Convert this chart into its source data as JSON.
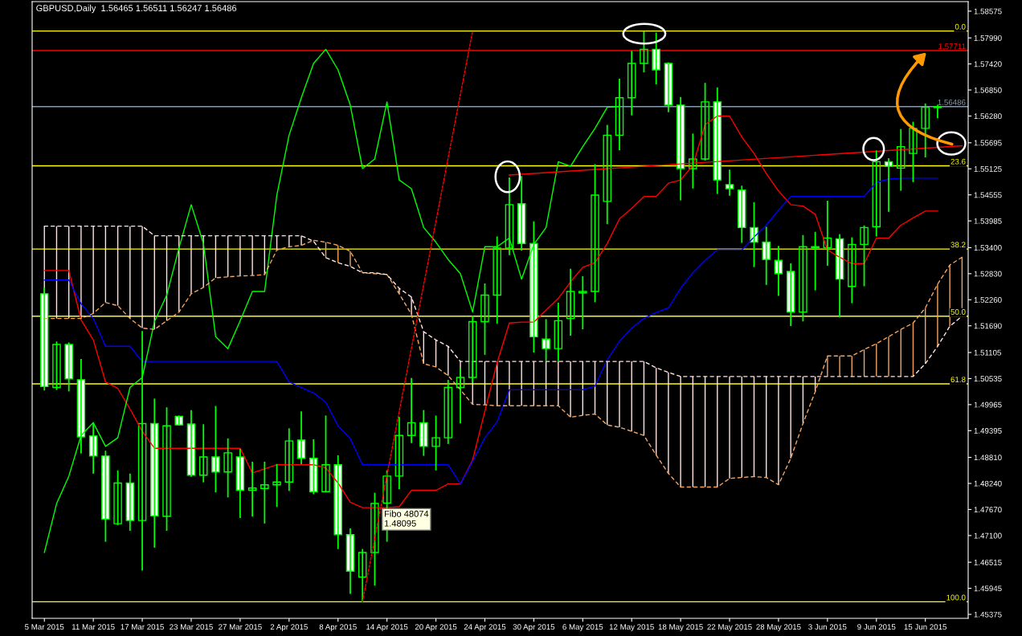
{
  "chart_data": {
    "type": "candlestick",
    "title": "GBPUSD,Daily  1.56465 1.56511 1.56247 1.56486",
    "categories": [
      "5 Mar 2015",
      null,
      null,
      null,
      "11 Mar 2015",
      null,
      null,
      null,
      "17 Mar 2015",
      null,
      null,
      null,
      "23 Mar 2015",
      null,
      null,
      null,
      "27 Mar 2015",
      null,
      null,
      null,
      "2 Apr 2015",
      null,
      null,
      null,
      "8 Apr 2015",
      null,
      null,
      null,
      "14 Apr 2015",
      null,
      null,
      null,
      "20 Apr 2015",
      null,
      null,
      null,
      "24 Apr 2015",
      null,
      null,
      null,
      "30 Apr 2015",
      null,
      null,
      null,
      "6 May 2015",
      null,
      null,
      null,
      "12 May 2015",
      null,
      null,
      null,
      "18 May 2015",
      null,
      null,
      null,
      "22 May 2015",
      null,
      null,
      null,
      "28 May 2015",
      null,
      null,
      null,
      "3 Jun 2015",
      null,
      null,
      null,
      "9 Jun 2015",
      null,
      null,
      null,
      "15 Jun 2015",
      null,
      null,
      null
    ],
    "color": "#00ff00",
    "ohlc": [
      [
        1.5239,
        1.5251,
        1.5029,
        1.5036
      ],
      [
        1.5034,
        1.5133,
        1.503,
        1.5128
      ],
      [
        1.5128,
        1.5131,
        1.5027,
        1.5053
      ],
      [
        1.5051,
        1.5095,
        1.4891,
        1.4926
      ],
      [
        1.4928,
        1.4955,
        1.4847,
        1.4884
      ],
      [
        1.4884,
        1.4894,
        1.4698,
        1.4746
      ],
      [
        1.4736,
        1.4851,
        1.4734,
        1.4825
      ],
      [
        1.4825,
        1.4844,
        1.4722,
        1.4743
      ],
      [
        1.4743,
        1.5156,
        1.4635,
        1.4955
      ],
      [
        1.4955,
        1.5008,
        1.4685,
        1.4753
      ],
      [
        1.4752,
        1.4989,
        1.4722,
        1.495
      ],
      [
        1.4971,
        1.4971,
        1.4952,
        1.4952
      ],
      [
        1.4954,
        1.4983,
        1.484,
        1.4842
      ],
      [
        1.4842,
        1.4952,
        1.4828,
        1.4882
      ],
      [
        1.4882,
        1.4992,
        1.4806,
        1.4849
      ],
      [
        1.4849,
        1.4921,
        1.4795,
        1.4891
      ],
      [
        1.4882,
        1.4898,
        1.475,
        1.4809
      ],
      [
        1.4809,
        1.487,
        1.4753,
        1.4814
      ],
      [
        1.4813,
        1.487,
        1.4738,
        1.4821
      ],
      [
        1.4821,
        1.4865,
        1.4774,
        1.4827
      ],
      [
        1.4827,
        1.4943,
        1.4809,
        1.4917
      ],
      [
        1.4919,
        1.498,
        1.4868,
        1.4879
      ],
      [
        1.4879,
        1.4919,
        1.4802,
        1.4806
      ],
      [
        1.4806,
        1.4971,
        1.4806,
        1.4865
      ],
      [
        1.4865,
        1.4884,
        1.4682,
        1.4712
      ],
      [
        1.4712,
        1.4724,
        1.4584,
        1.4632
      ],
      [
        1.4619,
        1.4679,
        1.4565,
        1.4673
      ],
      [
        1.4673,
        1.4802,
        1.4602,
        1.478
      ],
      [
        1.4781,
        1.4851,
        1.4698,
        1.484
      ],
      [
        1.484,
        1.4968,
        1.4813,
        1.4929
      ],
      [
        1.4929,
        1.5053,
        1.4914,
        1.4957
      ],
      [
        1.4957,
        1.4983,
        1.4886,
        1.4905
      ],
      [
        1.4905,
        1.4971,
        1.4854,
        1.4924
      ],
      [
        1.4924,
        1.5049,
        1.4912,
        1.5034
      ],
      [
        1.5034,
        1.5074,
        1.4957,
        1.5056
      ],
      [
        1.5056,
        1.519,
        1.5046,
        1.5178
      ],
      [
        1.5178,
        1.526,
        1.5107,
        1.5236
      ],
      [
        1.5236,
        1.5363,
        1.5175,
        1.5339
      ],
      [
        1.5339,
        1.5492,
        1.5325,
        1.5434
      ],
      [
        1.5436,
        1.5495,
        1.5335,
        1.5349
      ],
      [
        1.5349,
        1.5396,
        1.5112,
        1.5145
      ],
      [
        1.514,
        1.5182,
        1.5093,
        1.5119
      ],
      [
        1.5119,
        1.5218,
        1.5093,
        1.518
      ],
      [
        1.5185,
        1.5292,
        1.5149,
        1.5244
      ],
      [
        1.5241,
        1.5276,
        1.5163,
        1.5244
      ],
      [
        1.5244,
        1.5521,
        1.5222,
        1.5455
      ],
      [
        1.5441,
        1.5607,
        1.5393,
        1.5586
      ],
      [
        1.5586,
        1.5708,
        1.5555,
        1.5668
      ],
      [
        1.5668,
        1.5769,
        1.5631,
        1.5743
      ],
      [
        1.5743,
        1.5812,
        1.5725,
        1.5774
      ],
      [
        1.5774,
        1.5809,
        1.5699,
        1.5729
      ],
      [
        1.5743,
        1.5744,
        1.5638,
        1.5652
      ],
      [
        1.5652,
        1.5668,
        1.5445,
        1.5513
      ],
      [
        1.5513,
        1.5588,
        1.5471,
        1.5534
      ],
      [
        1.5534,
        1.5699,
        1.5532,
        1.5659
      ],
      [
        1.5659,
        1.5689,
        1.5459,
        1.5488
      ],
      [
        1.5478,
        1.5509,
        1.5455,
        1.5469
      ],
      [
        1.5466,
        1.5474,
        1.5352,
        1.5384
      ],
      [
        1.5384,
        1.5438,
        1.5299,
        1.5352
      ],
      [
        1.5352,
        1.5384,
        1.526,
        1.5314
      ],
      [
        1.5312,
        1.5342,
        1.5236,
        1.5283
      ],
      [
        1.5288,
        1.5304,
        1.517,
        1.5199
      ],
      [
        1.5199,
        1.5366,
        1.518,
        1.5342
      ],
      [
        1.534,
        1.5373,
        1.5248,
        1.5342
      ],
      [
        1.534,
        1.5441,
        1.5302,
        1.5361
      ],
      [
        1.5359,
        1.5368,
        1.5189,
        1.5271
      ],
      [
        1.5255,
        1.5361,
        1.522,
        1.5347
      ],
      [
        1.5347,
        1.5387,
        1.5257,
        1.5384
      ],
      [
        1.5386,
        1.5551,
        1.5366,
        1.5528
      ],
      [
        1.5528,
        1.5534,
        1.542,
        1.5518
      ],
      [
        1.5514,
        1.5598,
        1.5466,
        1.5561
      ],
      [
        1.5546,
        1.5614,
        1.5485,
        1.5601
      ],
      [
        1.5601,
        1.5654,
        1.5539,
        1.5647
      ],
      [
        1.56465,
        1.56511,
        1.56247,
        1.56486
      ],
      null,
      null
    ],
    "colors": [
      "#ffffff",
      "#00ff00",
      "#ffffff",
      "#ffffff",
      "#ffffff",
      "#ffffff",
      "#00ff00",
      "#ffffff",
      "#00ff00",
      "#ffffff",
      "#00ff00",
      "#ffffff",
      "#ffffff",
      "#00ff00",
      "#ffffff",
      "#00ff00",
      "#ffffff",
      "#00ff00",
      "#00ff00",
      "#00ff00",
      "#00ff00",
      "#ffffff",
      "#ffffff",
      "#00ff00",
      "#ffffff",
      "#ffffff",
      "#00ff00",
      "#00ff00",
      "#00ff00",
      "#00ff00",
      "#00ff00",
      "#ffffff",
      "#00ff00",
      "#00ff00",
      "#00ff00",
      "#00ff00",
      "#00ff00",
      "#00ff00",
      "#00ff00",
      "#ffffff",
      "#ffffff",
      "#ffffff",
      "#00ff00",
      "#00ff00",
      "#00ff00",
      "#00ff00",
      "#00ff00",
      "#00ff00",
      "#00ff00",
      "#00ff00",
      "#ffffff",
      "#ffffff",
      "#ffffff",
      "#00ff00",
      "#00ff00",
      "#ffffff",
      "#ffffff",
      "#ffffff",
      "#ffffff",
      "#ffffff",
      "#ffffff",
      "#ffffff",
      "#00ff00",
      "#00ff00",
      "#00ff00",
      "#ffffff",
      "#00ff00",
      "#00ff00",
      "#00ff00",
      "#ffffff",
      "#00ff00",
      "#00ff00",
      "#00ff00",
      "#00ff00",
      null,
      null
    ],
    "series": [
      {
        "type": "line",
        "color": "#ff0000",
        "line_style": "solid",
        "values": [
          1.529,
          1.529,
          1.529,
          1.5182,
          1.5138,
          1.5046,
          1.5032,
          1.4987,
          1.4938,
          1.4901,
          1.4901,
          1.4901,
          1.4901,
          1.4901,
          1.4901,
          1.4901,
          1.4901,
          1.4847,
          1.4856,
          1.4865,
          1.4865,
          1.4865,
          1.4865,
          1.4858,
          1.4825,
          1.4783,
          1.4771,
          1.4771,
          1.4771,
          1.4773,
          1.4809,
          1.4809,
          1.4809,
          1.4823,
          1.4823,
          1.4875,
          1.4982,
          1.5088,
          1.5175,
          1.5177,
          1.5177,
          1.5203,
          1.5229,
          1.5265,
          1.5297,
          1.5307,
          1.5349,
          1.5403,
          1.5426,
          1.5452,
          1.5452,
          1.5481,
          1.5488,
          1.552,
          1.5609,
          1.5628,
          1.5628,
          1.5582,
          1.5546,
          1.5502,
          1.5464,
          1.5434,
          1.5431,
          1.5413,
          1.5335,
          1.5319,
          1.5305,
          1.5305,
          1.5361,
          1.5361,
          1.5389,
          1.5405,
          1.542,
          1.542,
          null,
          null
        ]
      },
      {
        "type": "line",
        "color": "#0000ff",
        "line_style": "solid",
        "values": [
          1.5269,
          1.5269,
          1.5269,
          1.5217,
          1.5185,
          1.5124,
          1.5124,
          1.5124,
          1.5091,
          1.5091,
          1.5091,
          1.5091,
          1.5091,
          1.5091,
          1.5091,
          1.5091,
          1.5091,
          1.5091,
          1.5091,
          1.5091,
          1.5046,
          1.5034,
          1.5022,
          1.5002,
          1.495,
          1.4922,
          1.4865,
          1.4865,
          1.4865,
          1.4865,
          1.4865,
          1.4865,
          1.4865,
          1.4865,
          1.4823,
          1.4872,
          1.4924,
          1.4959,
          1.5029,
          1.5029,
          1.5029,
          1.5029,
          1.5029,
          1.5029,
          1.5029,
          1.5037,
          1.5095,
          1.5135,
          1.5164,
          1.5185,
          1.5198,
          1.5208,
          1.5251,
          1.5285,
          1.5312,
          1.5335,
          1.5335,
          1.5335,
          1.5363,
          1.5389,
          1.5422,
          1.5452,
          1.5452,
          1.5452,
          1.5452,
          1.5452,
          1.5452,
          1.5452,
          1.5483,
          1.549,
          1.5492,
          1.5492,
          1.5492,
          1.5492,
          null,
          null
        ]
      },
      {
        "type": "line",
        "color": "#00ff00",
        "line_style": "solid",
        "values": [
          1.4673,
          1.478,
          1.484,
          1.4929,
          1.4957,
          1.4905,
          1.4924,
          1.5034,
          1.5056,
          1.5178,
          1.5236,
          1.5339,
          1.5434,
          1.5349,
          1.5145,
          1.5119,
          1.518,
          1.5244,
          1.5244,
          1.5455,
          1.5586,
          1.5668,
          1.5743,
          1.5774,
          1.5729,
          1.5652,
          1.5513,
          1.5534,
          1.5659,
          1.5488,
          1.5469,
          1.5384,
          1.5352,
          1.5314,
          1.5283,
          1.5199,
          1.5342,
          1.5342,
          1.5361,
          1.5271,
          1.5347,
          1.5384,
          1.5528,
          1.5518,
          1.5561,
          1.5601,
          1.5647,
          1.5649,
          null,
          null,
          null,
          null,
          null,
          null,
          null,
          null,
          null,
          null,
          null,
          null,
          null,
          null,
          null,
          null,
          null,
          null,
          null,
          null,
          null,
          null,
          null,
          null,
          null,
          null,
          null,
          null
        ]
      },
      {
        "type": "line",
        "color": "#f4a460",
        "line_style": "dashed",
        "values": [
          1.5185,
          1.5185,
          1.5185,
          1.5185,
          1.5196,
          1.522,
          1.5213,
          1.5185,
          1.5164,
          1.5161,
          1.518,
          1.5199,
          1.5239,
          1.5253,
          1.5274,
          1.5276,
          1.5278,
          1.5279,
          1.5281,
          1.5335,
          1.5342,
          1.5345,
          1.5356,
          1.5352,
          1.5345,
          1.5332,
          1.5285,
          1.5283,
          1.5281,
          1.5239,
          1.5194,
          1.5086,
          1.5079,
          1.506,
          1.5029,
          1.4997,
          1.4996,
          1.4994,
          1.4994,
          1.4994,
          1.4994,
          1.4994,
          1.4994,
          1.4969,
          1.4973,
          1.4976,
          1.4952,
          1.4947,
          1.4938,
          1.4929,
          1.4886,
          1.4846,
          1.4816,
          1.4816,
          1.4816,
          1.4816,
          1.4835,
          1.4837,
          1.4839,
          1.4837,
          1.4821,
          1.4879,
          1.4955,
          1.5025,
          1.5103,
          1.5103,
          1.5103,
          1.5117,
          1.513,
          1.5145,
          1.5161,
          1.5175,
          1.5208,
          1.526,
          1.5302,
          1.5319
        ]
      },
      {
        "type": "line",
        "color": "#ffe4e1",
        "line_style": "dashed",
        "values": [
          1.5387,
          1.5387,
          1.5387,
          1.5387,
          1.5387,
          1.5387,
          1.5387,
          1.5387,
          1.5387,
          1.5366,
          1.5366,
          1.5366,
          1.5366,
          1.5366,
          1.5366,
          1.5366,
          1.5366,
          1.5366,
          1.5366,
          1.5366,
          1.5366,
          1.5366,
          1.5354,
          1.5318,
          1.5307,
          1.5299,
          1.5285,
          1.5285,
          1.5281,
          1.5251,
          1.5232,
          1.5156,
          1.5138,
          1.5124,
          1.5091,
          1.5091,
          1.5091,
          1.5091,
          1.5091,
          1.5091,
          1.5091,
          1.5091,
          1.5091,
          1.5091,
          1.5091,
          1.5091,
          1.5091,
          1.5091,
          1.5091,
          1.5091,
          1.5077,
          1.5067,
          1.5058,
          1.5058,
          1.5058,
          1.5058,
          1.5058,
          1.5058,
          1.5058,
          1.5058,
          1.5058,
          1.5058,
          1.5058,
          1.5058,
          1.5058,
          1.5058,
          1.5058,
          1.5058,
          1.5058,
          1.5058,
          1.5058,
          1.5058,
          1.5086,
          1.5124,
          1.5168,
          1.519
        ]
      },
      {
        "type": "line",
        "color": "#ff0000",
        "line_style": "solid",
        "values": [
          null,
          null,
          null,
          null,
          null,
          null,
          null,
          null,
          null,
          null,
          null,
          null,
          null,
          null,
          null,
          null,
          null,
          null,
          null,
          null,
          null,
          null,
          null,
          null,
          null,
          null,
          null,
          null,
          null,
          null,
          null,
          null,
          null,
          null,
          null,
          null,
          null,
          null,
          1.5499,
          null,
          null,
          null,
          null,
          null,
          null,
          null,
          null,
          null,
          null,
          null,
          null,
          null,
          null,
          null,
          null,
          null,
          null,
          null,
          null,
          null,
          null,
          null,
          null,
          null,
          null,
          null,
          null,
          null,
          null,
          null,
          null,
          null,
          null,
          null,
          null,
          1.5563
        ]
      },
      {
        "type": "line",
        "color": "#ff0000",
        "line_style": "dotted",
        "values": [
          null,
          null,
          null,
          null,
          null,
          null,
          null,
          null,
          null,
          null,
          null,
          null,
          null,
          null,
          null,
          null,
          null,
          null,
          null,
          null,
          null,
          null,
          null,
          null,
          null,
          null,
          1.4565,
          null,
          null,
          null,
          null,
          null,
          null,
          null,
          null,
          1.5814,
          null,
          null,
          null,
          null,
          null,
          null,
          null,
          null,
          null,
          null,
          null,
          null,
          null,
          null,
          null,
          null,
          null,
          null,
          null,
          null,
          null,
          null,
          null,
          null,
          null,
          null,
          null,
          null,
          null,
          null,
          null,
          null,
          null,
          null,
          null,
          null,
          null,
          null,
          null,
          null
        ]
      }
    ],
    "ylim": [
      1.45288,
      1.58784
    ],
    "yticks": [
      {
        "value": 1.58575,
        "label": "1.58575"
      },
      {
        "value": 1.5799,
        "label": "1.57990"
      },
      {
        "value": 1.5742,
        "label": "1.57420"
      },
      {
        "value": 1.5685,
        "label": "1.56850"
      },
      {
        "value": 1.5628,
        "label": "1.56280"
      },
      {
        "value": 1.55695,
        "label": "1.55695"
      },
      {
        "value": 1.55125,
        "label": "1.55125"
      },
      {
        "value": 1.54555,
        "label": "1.54555"
      },
      {
        "value": 1.53985,
        "label": "1.53985"
      },
      {
        "value": 1.534,
        "label": "1.53400"
      },
      {
        "value": 1.5283,
        "label": "1.52830"
      },
      {
        "value": 1.5226,
        "label": "1.52260"
      },
      {
        "value": 1.5169,
        "label": "1.51690"
      },
      {
        "value": 1.51105,
        "label": "1.51105"
      },
      {
        "value": 1.50535,
        "label": "1.50535"
      },
      {
        "value": 1.49965,
        "label": "1.49965"
      },
      {
        "value": 1.49395,
        "label": "1.49395"
      },
      {
        "value": 1.4881,
        "label": "1.48810"
      },
      {
        "value": 1.4824,
        "label": "1.48240"
      },
      {
        "value": 1.4767,
        "label": "1.47670"
      },
      {
        "value": 1.471,
        "label": "1.47100"
      },
      {
        "value": 1.46515,
        "label": "1.46515"
      },
      {
        "value": 1.45945,
        "label": "1.45945"
      },
      {
        "value": 1.45375,
        "label": "1.45375"
      }
    ],
    "ref_lines": [
      {
        "axis": "y",
        "value": 1.5814,
        "color": "#ffff00"
      },
      {
        "axis": "y",
        "value": 1.5519,
        "color": "#ffff00"
      },
      {
        "axis": "y",
        "value": 1.5337,
        "color": "#ffff00"
      },
      {
        "axis": "y",
        "value": 1.519,
        "color": "#ffff00"
      },
      {
        "axis": "y",
        "value": 1.5042,
        "color": "#ffff00"
      },
      {
        "axis": "y",
        "value": 1.4565,
        "color": "#ffff00"
      },
      {
        "axis": "y",
        "value": 1.57711,
        "label": "1.57711",
        "color": "#ff0000"
      },
      {
        "axis": "y",
        "value": 1.56486,
        "label": "1.56486",
        "color": "#8899aa"
      }
    ],
    "annotations": [
      "Fibo 48074\n1.48095",
      {
        "text": "0.0",
        "y": 1.5814
      },
      {
        "text": "23.6",
        "y": 1.5519
      },
      {
        "text": "38.2",
        "y": 1.5337
      },
      {
        "text": "50.0",
        "y": 1.519
      },
      {
        "text": "61.8",
        "y": 1.5042
      },
      {
        "text": "100.0",
        "y": 1.4565
      }
    ],
    "grid": false,
    "legend": false
  }
}
